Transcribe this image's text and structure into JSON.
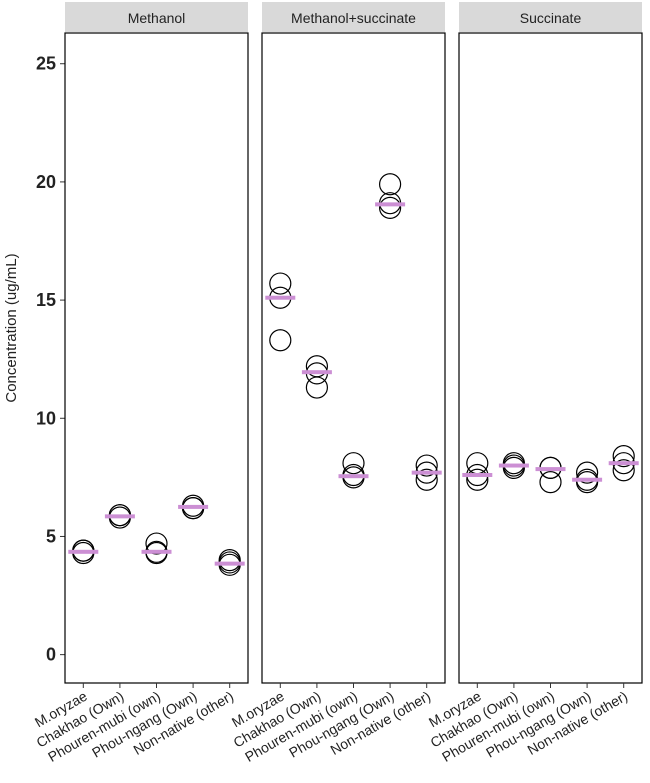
{
  "chart_data": {
    "type": "dot",
    "y_label": "Concentration (ug/mL)",
    "categories": [
      "M.oryzae",
      "Chakhao (Own)",
      "Phouren-mubi (own)",
      "Phou-ngang (Own)",
      "Non-native (other)"
    ],
    "ylim": [
      -1.2,
      26.3
    ],
    "yticks": [
      0,
      5,
      10,
      15,
      20,
      25
    ],
    "point_color": "#000000",
    "center_color": "#cc8fd4",
    "facets": [
      {
        "title": "Methanol",
        "replicates": [
          [
            4.3,
            4.4,
            4.4
          ],
          [
            5.8,
            5.9,
            5.9
          ],
          [
            4.7,
            4.35,
            4.3
          ],
          [
            6.2,
            6.3,
            6.2
          ],
          [
            3.9,
            4.0,
            3.8
          ]
        ],
        "centers": [
          4.35,
          5.85,
          4.35,
          6.25,
          3.85
        ]
      },
      {
        "title": "Methanol+succinate",
        "replicates": [
          [
            15.7,
            15.1,
            13.3
          ],
          [
            12.2,
            11.9,
            11.3
          ],
          [
            8.1,
            7.6,
            7.5
          ],
          [
            19.9,
            19.1,
            18.9
          ],
          [
            8.0,
            7.7,
            7.4
          ]
        ],
        "centers": [
          15.1,
          11.95,
          7.55,
          19.05,
          7.7
        ]
      },
      {
        "title": "Succinate",
        "replicates": [
          [
            8.1,
            7.6,
            7.4
          ],
          [
            8.1,
            8.0,
            7.9
          ],
          [
            7.9,
            7.9,
            7.3
          ],
          [
            7.7,
            7.4,
            7.3
          ],
          [
            8.4,
            8.1,
            7.8
          ]
        ],
        "centers": [
          7.6,
          8.0,
          7.85,
          7.4,
          8.1
        ]
      }
    ]
  }
}
